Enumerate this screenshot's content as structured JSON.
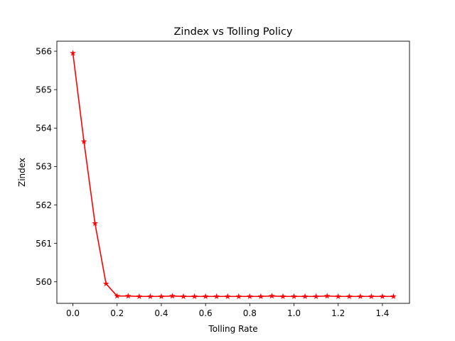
{
  "chart_data": {
    "type": "line",
    "title": "Zindex vs Tolling Policy",
    "xlabel": "Tolling Rate",
    "ylabel": "Zindex",
    "xlim": [
      -0.0725,
      1.5225
    ],
    "ylim": [
      559.44,
      566.26
    ],
    "xticks": [
      "0.0",
      "0.2",
      "0.4",
      "0.6",
      "0.8",
      "1.0",
      "1.2",
      "1.4"
    ],
    "yticks": [
      "560",
      "561",
      "562",
      "563",
      "564",
      "565",
      "566"
    ],
    "grid": false,
    "legend": "none",
    "series": [
      {
        "color": "#ff0000",
        "marker": "star",
        "x": [
          0.0,
          0.05,
          0.1,
          0.15,
          0.2,
          0.25,
          0.3,
          0.35,
          0.4,
          0.45,
          0.5,
          0.55,
          0.6,
          0.65,
          0.7,
          0.75,
          0.8,
          0.85,
          0.9,
          0.95,
          1.0,
          1.05,
          1.1,
          1.15,
          1.2,
          1.25,
          1.3,
          1.35,
          1.4,
          1.45
        ],
        "y": [
          565.95,
          563.65,
          561.52,
          559.95,
          559.63,
          559.63,
          559.62,
          559.62,
          559.62,
          559.63,
          559.62,
          559.62,
          559.62,
          559.62,
          559.62,
          559.62,
          559.62,
          559.62,
          559.63,
          559.62,
          559.62,
          559.62,
          559.62,
          559.63,
          559.62,
          559.62,
          559.62,
          559.62,
          559.62,
          559.62
        ]
      }
    ]
  }
}
